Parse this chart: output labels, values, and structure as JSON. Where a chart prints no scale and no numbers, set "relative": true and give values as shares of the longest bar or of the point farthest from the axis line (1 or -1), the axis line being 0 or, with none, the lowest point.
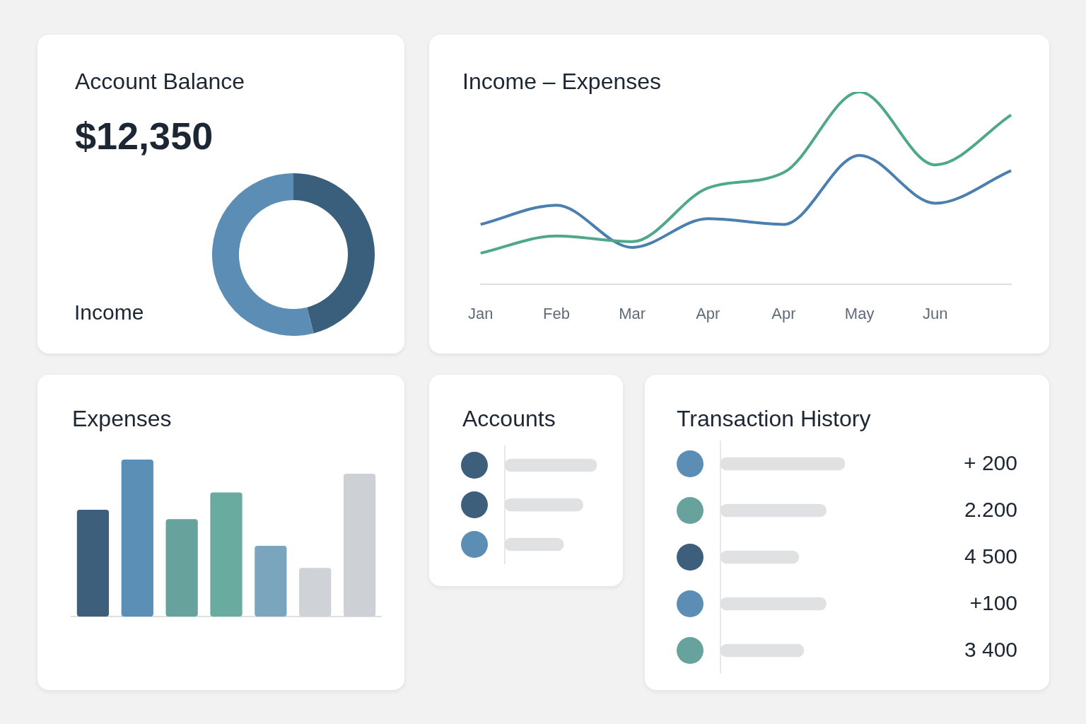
{
  "chart_data": [
    {
      "type": "donut",
      "title": "Account Balance",
      "subtitle": "$12,350",
      "annotations": [
        "Income"
      ],
      "categories": [
        null,
        null
      ],
      "values": [
        46,
        54
      ],
      "colors": [
        "#3a5f7d",
        "#5b8db5"
      ]
    },
    {
      "type": "line",
      "title": "Income – Expenses",
      "relative": true,
      "tick_labels": "x",
      "categories": [
        "Jan",
        "Feb",
        "Mar",
        "Apr",
        "Apr",
        "May",
        "Jun",
        null
      ],
      "series": [
        {
          "color": "#4fa88a",
          "values": [
            0.16,
            0.25,
            0.22,
            0.5,
            0.58,
            1,
            0.62,
            0.88
          ]
        },
        {
          "color": "#4a7fb0",
          "values": [
            0.31,
            0.41,
            0.19,
            0.34,
            0.31,
            0.67,
            0.42,
            0.59
          ]
        }
      ]
    },
    {
      "type": "bar",
      "title": "Expenses",
      "relative": true,
      "tick_labels": false,
      "categories": [
        null,
        null,
        null,
        null,
        null,
        null,
        null
      ],
      "values": [
        0.68,
        1,
        0.62,
        0.79,
        0.45,
        0.31,
        0.91
      ],
      "colors": [
        "#3d5f7c",
        "#5b8fb5",
        "#67a39c",
        "#6aab9f",
        "#7aa5bd",
        "#cfd3d7",
        "#cdd1d5"
      ]
    },
    {
      "type": "bar",
      "orientation": "horizontal",
      "relative": true,
      "tick_labels": false,
      "title": "Accounts",
      "categories": [
        null,
        null,
        null
      ],
      "values": [
        1,
        0.85,
        0.64
      ],
      "color": "#dfe1e3"
    },
    {
      "type": "bar",
      "orientation": "horizontal",
      "relative": true,
      "tick_labels": false,
      "title": "Transaction History",
      "annotations": [
        "+ 200",
        "2.200",
        "4 500",
        "+100",
        "3 400"
      ],
      "categories": [
        null,
        null,
        null,
        null,
        null
      ],
      "values": [
        1,
        0.85,
        0.63,
        0.85,
        0.67
      ],
      "color": "#dfe1e3"
    }
  ]
}
